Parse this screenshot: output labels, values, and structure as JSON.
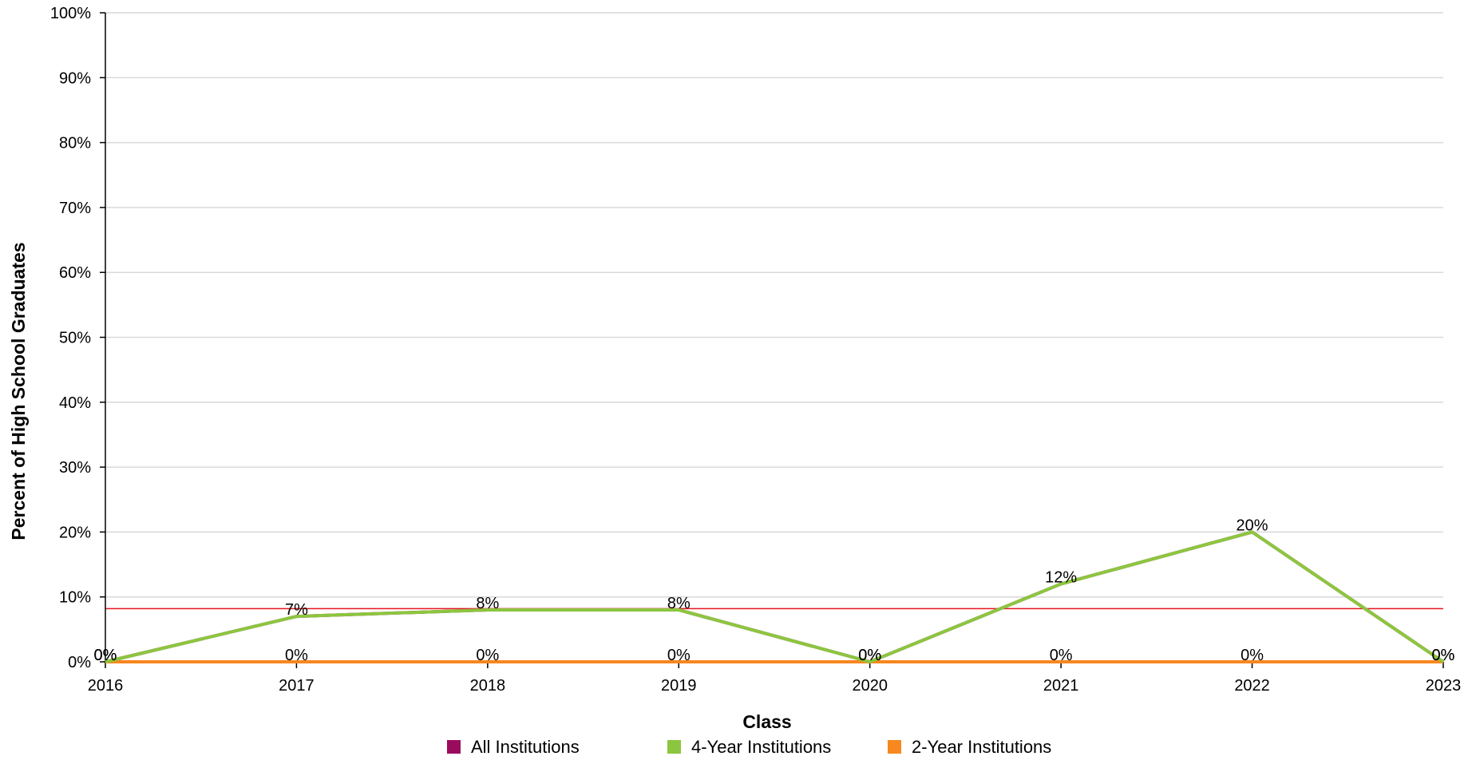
{
  "chart_data": {
    "type": "line",
    "xlabel": "Class",
    "ylabel": "Percent of High School Graduates",
    "x": [
      "2016",
      "2017",
      "2018",
      "2019",
      "2020",
      "2021",
      "2022",
      "2023"
    ],
    "ylim": [
      0,
      100
    ],
    "y_ticks": [
      "0%",
      "10%",
      "20%",
      "30%",
      "40%",
      "50%",
      "60%",
      "70%",
      "80%",
      "90%",
      "100%"
    ],
    "grid": true,
    "reference_line": {
      "value": 8.2,
      "color": "#e8141e"
    },
    "series": [
      {
        "name": "All Institutions",
        "color": "#9b0b5d",
        "values": [
          0,
          7,
          8,
          8,
          0,
          12,
          20,
          0
        ],
        "show_labels": false
      },
      {
        "name": "4-Year Institutions",
        "color": "#8cc63f",
        "values": [
          0,
          7,
          8,
          8,
          0,
          12,
          20,
          0
        ],
        "show_labels": true,
        "labels": [
          "0%",
          "7%",
          "8%",
          "8%",
          "0%",
          "12%",
          "20%",
          "0%"
        ]
      },
      {
        "name": "2-Year Institutions",
        "color": "#f7871f",
        "values": [
          0,
          0,
          0,
          0,
          0,
          0,
          0,
          0
        ],
        "show_labels": true,
        "labels": [
          "0%",
          "0%",
          "0%",
          "0%",
          "0%",
          "0%",
          "0%",
          "0%"
        ]
      }
    ],
    "legend_position": "bottom"
  }
}
